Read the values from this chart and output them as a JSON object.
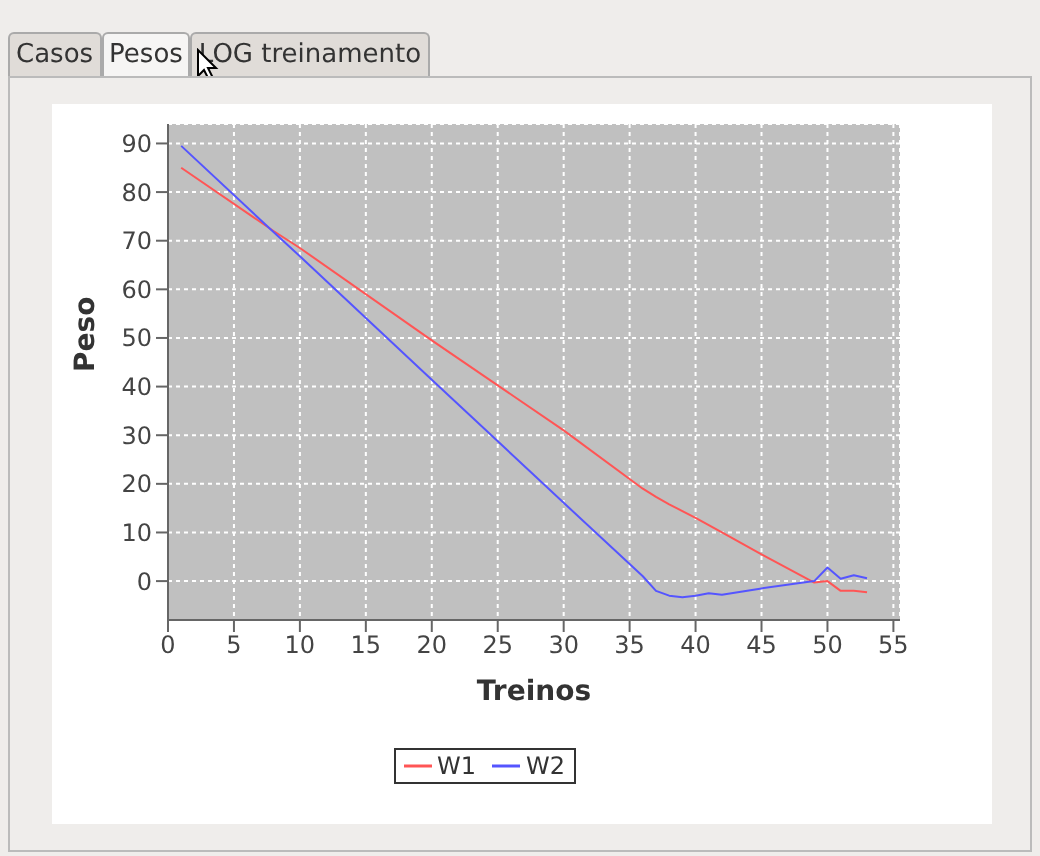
{
  "chart_data": {
    "type": "line",
    "xlabel": "Treinos",
    "ylabel": "Peso",
    "annotations": [
      "Casos",
      "Pesos",
      "LOG treinamento"
    ],
    "x": [
      1,
      8,
      10,
      20,
      30,
      36,
      37,
      38,
      39,
      40,
      41,
      42,
      45,
      49,
      50,
      51,
      52,
      53
    ],
    "series": [
      {
        "name": "W1",
        "color": "#ff5555",
        "values": [
          85,
          72,
          68.5,
          49.5,
          31,
          19,
          17.3,
          15.8,
          14.4,
          13,
          11.5,
          10,
          5.5,
          -0.3,
          0,
          -2,
          -2,
          -2.3
        ]
      },
      {
        "name": "W2",
        "color": "#5555ff",
        "values": [
          89.5,
          71.8,
          66.8,
          41.4,
          16.1,
          1,
          -2,
          -3,
          -3.3,
          -3,
          -2.5,
          -2.8,
          -1.5,
          0,
          2.8,
          0.5,
          1.2,
          0.6
        ]
      }
    ],
    "xlim": [
      0,
      55.5
    ],
    "xticks": [
      0,
      5,
      10,
      15,
      20,
      25,
      30,
      35,
      40,
      45,
      50,
      55
    ],
    "ylim": [
      -8,
      94
    ],
    "yticks": [
      0,
      10,
      20,
      30,
      40,
      50,
      60,
      70,
      80,
      90
    ],
    "grid": true,
    "legend": "bottom",
    "marker": "none",
    "line_style": "solid"
  }
}
